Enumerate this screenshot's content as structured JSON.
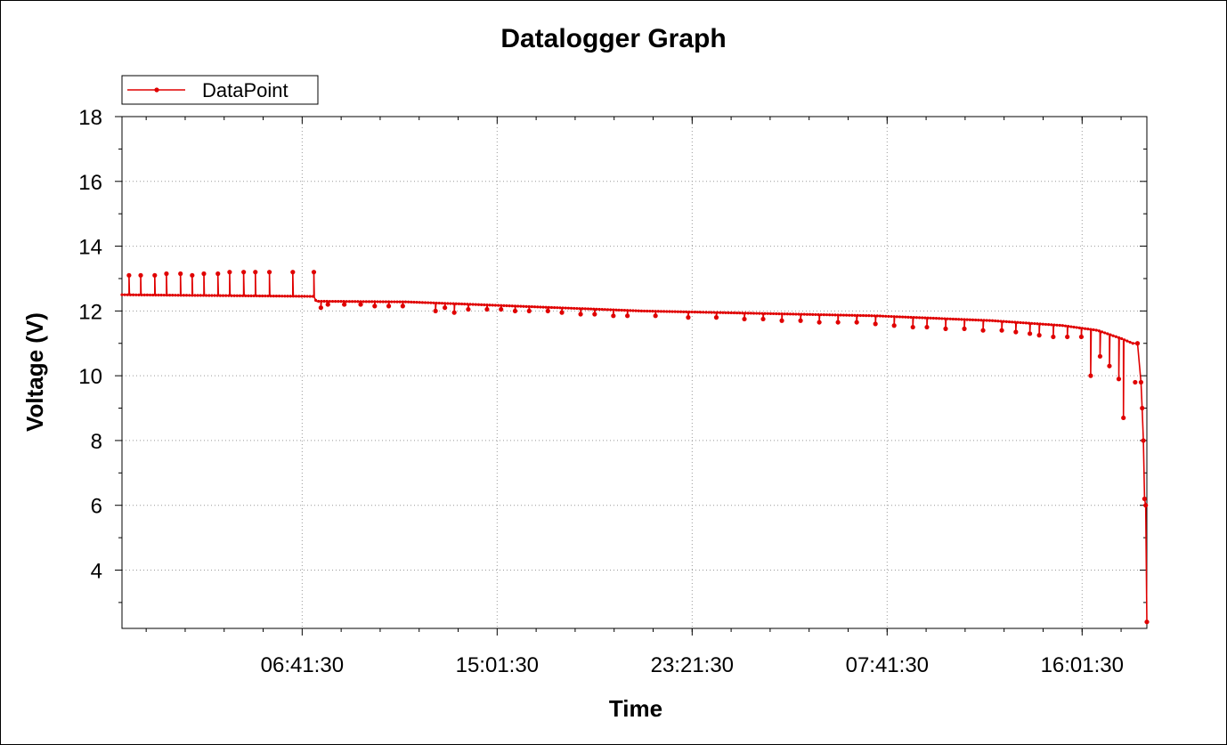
{
  "chart_data": {
    "type": "line",
    "title": "Datalogger Graph",
    "xlabel": "Time",
    "ylabel": "Voltage (V)",
    "ylim": [
      2.2,
      18.0
    ],
    "x_ticks": [
      {
        "label": "06:41:30",
        "hours": 5.5
      },
      {
        "label": "15:01:30",
        "hours": 13.833
      },
      {
        "label": "23:21:30",
        "hours": 22.167
      },
      {
        "label": "07:41:30",
        "hours": 30.5
      },
      {
        "label": "16:01:30",
        "hours": 38.833
      }
    ],
    "x_range_hours": [
      -2.2,
      41.6
    ],
    "y_ticks": [
      4,
      6,
      8,
      10,
      12,
      14,
      16,
      18
    ],
    "grid": true,
    "legend": {
      "position": "top-left",
      "entries": [
        "DataPoint"
      ]
    },
    "series": [
      {
        "name": "DataPoint",
        "color": "#e00000",
        "baseline": [
          [
            -2.2,
            12.5
          ],
          [
            6.0,
            12.45
          ],
          [
            6.1,
            12.3
          ],
          [
            10.0,
            12.28
          ],
          [
            20.0,
            12.0
          ],
          [
            30.0,
            11.85
          ],
          [
            35.0,
            11.7
          ],
          [
            38.0,
            11.55
          ],
          [
            39.5,
            11.4
          ],
          [
            40.5,
            11.15
          ],
          [
            41.0,
            11.0
          ]
        ],
        "spikes_up": [
          [
            -1.9,
            13.1
          ],
          [
            -1.4,
            13.1
          ],
          [
            -0.8,
            13.1
          ],
          [
            -0.3,
            13.15
          ],
          [
            0.3,
            13.15
          ],
          [
            0.8,
            13.1
          ],
          [
            1.3,
            13.15
          ],
          [
            1.9,
            13.15
          ],
          [
            2.4,
            13.2
          ],
          [
            3.0,
            13.2
          ],
          [
            3.5,
            13.2
          ],
          [
            4.1,
            13.2
          ],
          [
            5.1,
            13.2
          ],
          [
            6.0,
            13.2
          ]
        ],
        "dips": [
          [
            6.3,
            12.1
          ],
          [
            6.6,
            12.2
          ],
          [
            7.3,
            12.2
          ],
          [
            8.0,
            12.2
          ],
          [
            8.6,
            12.15
          ],
          [
            9.2,
            12.15
          ],
          [
            9.8,
            12.15
          ],
          [
            11.2,
            12.0
          ],
          [
            11.6,
            12.1
          ],
          [
            12.0,
            11.95
          ],
          [
            12.6,
            12.05
          ],
          [
            13.4,
            12.05
          ],
          [
            14.0,
            12.05
          ],
          [
            14.6,
            12.0
          ],
          [
            15.2,
            12.0
          ],
          [
            16.0,
            12.0
          ],
          [
            16.6,
            11.95
          ],
          [
            17.4,
            11.9
          ],
          [
            18.0,
            11.9
          ],
          [
            18.8,
            11.85
          ],
          [
            19.4,
            11.85
          ],
          [
            20.6,
            11.85
          ],
          [
            22.0,
            11.8
          ],
          [
            23.2,
            11.8
          ],
          [
            24.4,
            11.75
          ],
          [
            25.2,
            11.75
          ],
          [
            26.0,
            11.7
          ],
          [
            26.8,
            11.7
          ],
          [
            27.6,
            11.65
          ],
          [
            28.4,
            11.65
          ],
          [
            29.2,
            11.65
          ],
          [
            30.0,
            11.6
          ],
          [
            30.8,
            11.55
          ],
          [
            31.6,
            11.5
          ],
          [
            32.2,
            11.5
          ],
          [
            33.0,
            11.45
          ],
          [
            33.8,
            11.45
          ],
          [
            34.6,
            11.4
          ],
          [
            35.4,
            11.4
          ],
          [
            36.0,
            11.35
          ],
          [
            36.6,
            11.3
          ],
          [
            37.0,
            11.25
          ],
          [
            37.6,
            11.2
          ],
          [
            38.2,
            11.2
          ],
          [
            38.8,
            11.2
          ],
          [
            39.2,
            10.0
          ],
          [
            39.6,
            10.6
          ],
          [
            40.0,
            10.3
          ],
          [
            40.4,
            9.9
          ],
          [
            40.6,
            8.7
          ],
          [
            41.1,
            9.8
          ]
        ],
        "final_drop": [
          [
            41.2,
            11.0
          ],
          [
            41.35,
            9.8
          ],
          [
            41.4,
            9.0
          ],
          [
            41.45,
            8.0
          ],
          [
            41.5,
            6.2
          ],
          [
            41.55,
            6.0
          ],
          [
            41.6,
            2.4
          ]
        ]
      }
    ]
  }
}
